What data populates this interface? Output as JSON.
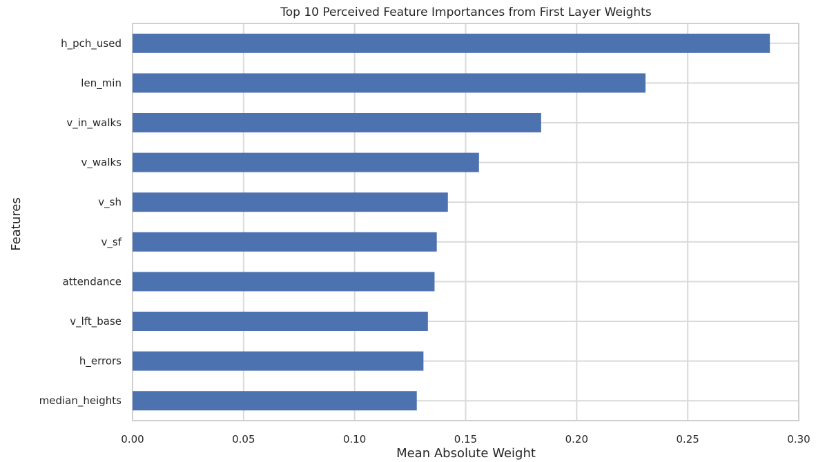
{
  "chart_data": {
    "type": "bar",
    "orientation": "horizontal",
    "title": "Top 10 Perceived Feature Importances from First Layer Weights",
    "xlabel": "Mean Absolute Weight",
    "ylabel": "Features",
    "xlim": [
      0.0,
      0.3
    ],
    "grid": true,
    "xticks": [
      "0.00",
      "0.05",
      "0.10",
      "0.15",
      "0.20",
      "0.25",
      "0.30"
    ],
    "xtick_values": [
      0.0,
      0.05,
      0.1,
      0.15,
      0.2,
      0.25,
      0.3
    ],
    "categories": [
      "h_pch_used",
      "len_min",
      "v_in_walks",
      "v_walks",
      "v_sh",
      "v_sf",
      "attendance",
      "v_lft_base",
      "h_errors",
      "median_heights"
    ],
    "values": [
      0.287,
      0.231,
      0.184,
      0.156,
      0.142,
      0.137,
      0.136,
      0.133,
      0.131,
      0.128
    ],
    "color": "#4C72B0"
  }
}
